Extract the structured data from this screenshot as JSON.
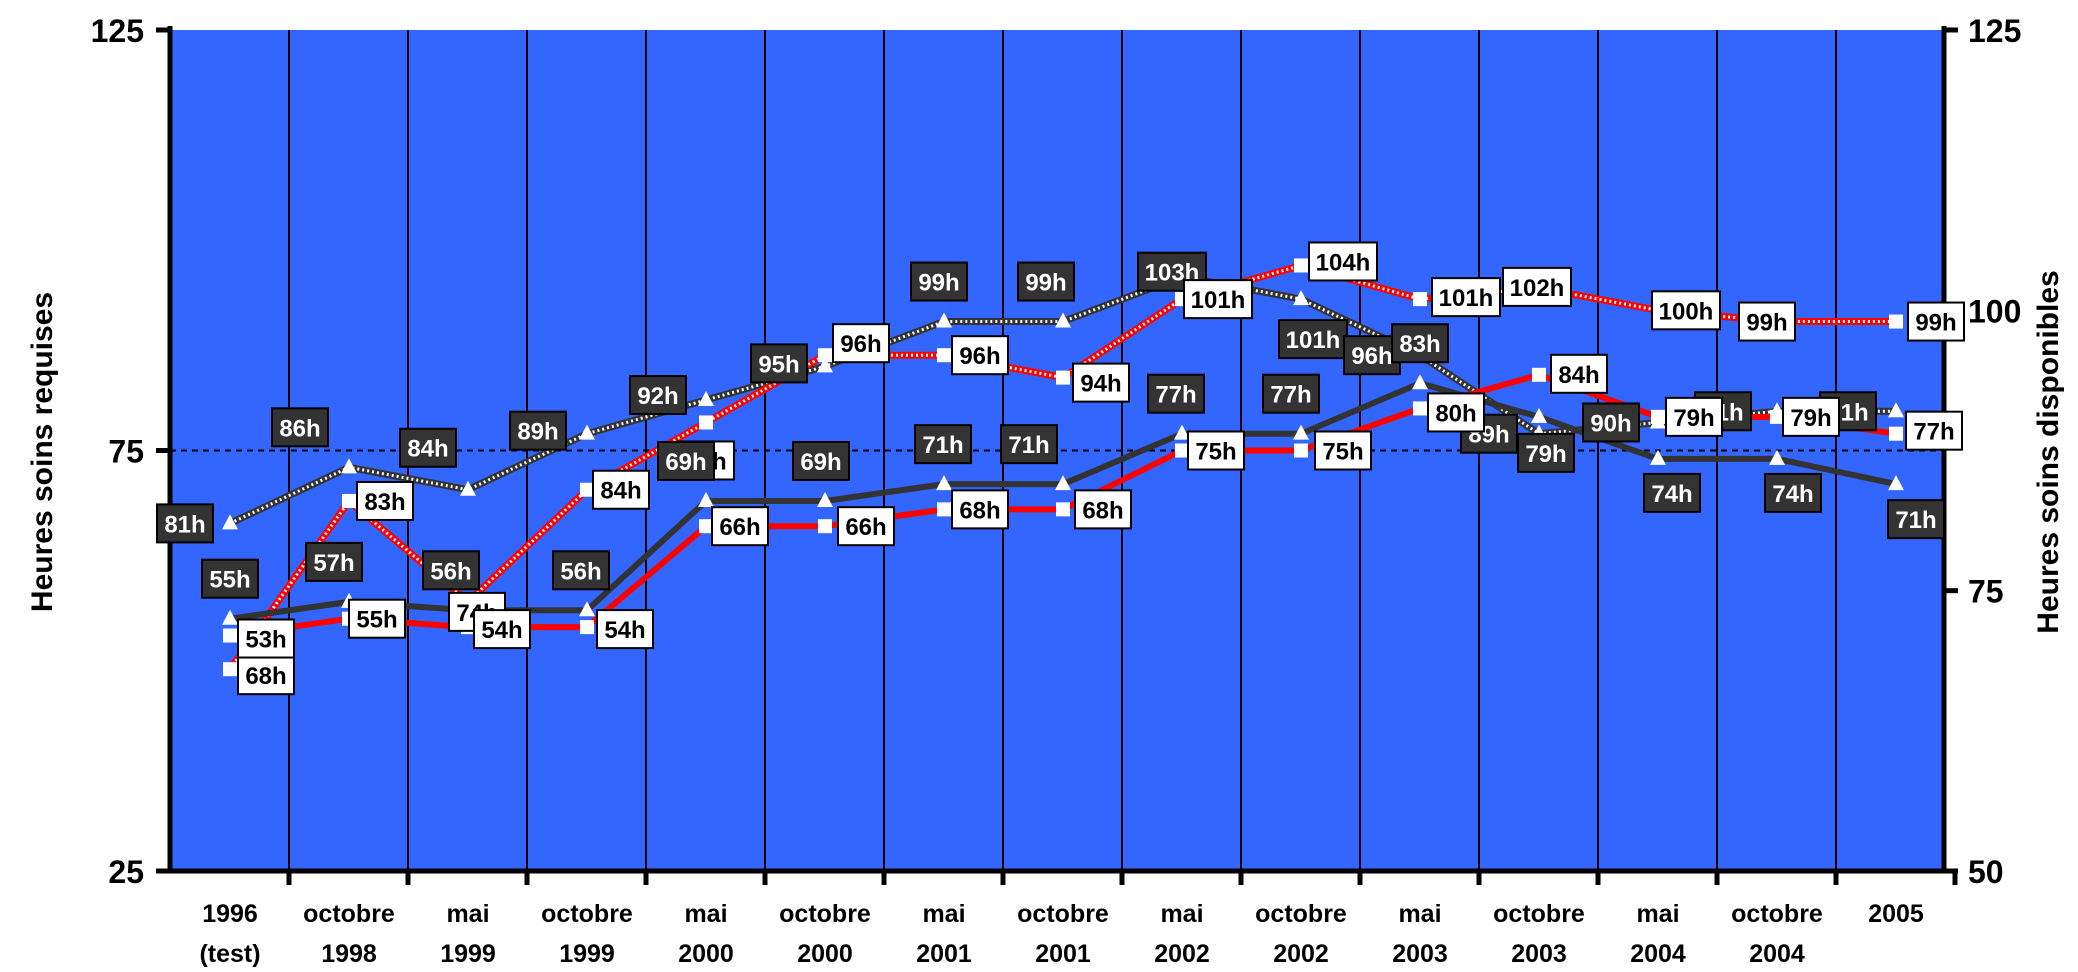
{
  "chart_data": {
    "type": "line",
    "categories": [
      [
        "1996",
        "(test)"
      ],
      [
        "octobre",
        "1998"
      ],
      [
        "mai",
        "1999"
      ],
      [
        "octobre",
        "1999"
      ],
      [
        "mai",
        "2000"
      ],
      [
        "octobre",
        "2000"
      ],
      [
        "mai",
        "2001"
      ],
      [
        "octobre",
        "2001"
      ],
      [
        "mai",
        "2002"
      ],
      [
        "octobre",
        "2002"
      ],
      [
        "mai",
        "2003"
      ],
      [
        "octobre",
        "2003"
      ],
      [
        "mai",
        "2004"
      ],
      [
        "octobre",
        "2004"
      ],
      [
        "2005",
        ""
      ]
    ],
    "y_left": {
      "label": "Heures soins requises",
      "lim": [
        25,
        125
      ],
      "ticks": [
        25,
        75,
        125
      ]
    },
    "y_right": {
      "label": "Heures soins disponibles",
      "lim": [
        50,
        125
      ],
      "ticks": [
        50,
        75,
        100,
        125
      ]
    },
    "reference_line_left": 75,
    "series": [
      {
        "axis": "right",
        "style": "dotted-dark",
        "marker": "triangle",
        "values": [
          81,
          86,
          84,
          89,
          92,
          95,
          99,
          99,
          103,
          101,
          96,
          89,
          90,
          91,
          91
        ],
        "labels": [
          "81h",
          "86h",
          "84h",
          "89h",
          "92h",
          "95h",
          "99h",
          "99h",
          "103h",
          "101h",
          "96h",
          "89h",
          "90h",
          "91h",
          "91h"
        ]
      },
      {
        "axis": "right",
        "style": "dotted-red",
        "marker": "square",
        "values": [
          68,
          83,
          74,
          84,
          90,
          96,
          96,
          94,
          101,
          104,
          101,
          102,
          100,
          99,
          99
        ],
        "labels": [
          "68h",
          "83h",
          "74h",
          "84h",
          "90h",
          "96h",
          "96h",
          "94h",
          "101h",
          "104h",
          "101h",
          "102h",
          "100h",
          "99h",
          "99h"
        ]
      },
      {
        "axis": "left",
        "style": "solid-dark",
        "marker": "triangle",
        "values": [
          55,
          57,
          56,
          56,
          69,
          69,
          71,
          71,
          77,
          77,
          83,
          79,
          74,
          74,
          71
        ],
        "labels": [
          "55h",
          "57h",
          "56h",
          "56h",
          "69h",
          "69h",
          "71h",
          "71h",
          "77h",
          "77h",
          "83h",
          "79h",
          "74h",
          "74h",
          "71h"
        ]
      },
      {
        "axis": "left",
        "style": "solid-red",
        "marker": "square",
        "values": [
          53,
          55,
          54,
          54,
          66,
          66,
          68,
          68,
          75,
          75,
          80,
          84,
          79,
          79,
          77
        ],
        "labels": [
          "53h",
          "55h",
          "54h",
          "54h",
          "66h",
          "66h",
          "68h",
          "68h",
          "75h",
          "75h",
          "80h",
          "84h",
          "79h",
          "79h",
          "77h"
        ]
      }
    ],
    "colors": {
      "plot_background": "#3366ff",
      "red": "#ff0000",
      "dark": "#333333",
      "label_dark": "#333333",
      "label_light": "#ffffff"
    },
    "grid": "vertical"
  }
}
